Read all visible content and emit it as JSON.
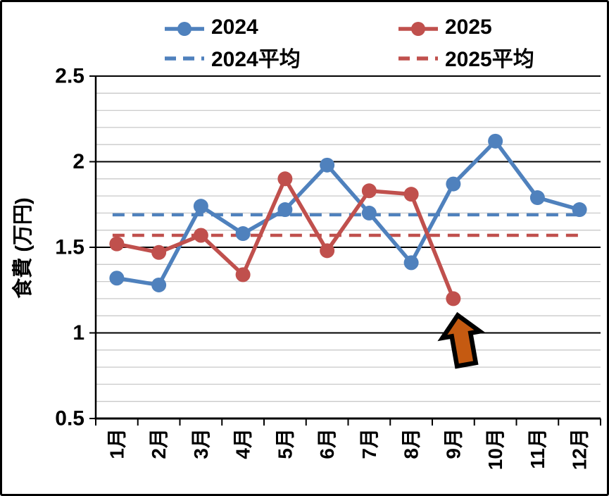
{
  "chart_data": {
    "type": "line",
    "title": "",
    "ylabel": "食費 (万円)",
    "xlabel": "",
    "categories": [
      "1月",
      "2月",
      "3月",
      "4月",
      "5月",
      "6月",
      "7月",
      "8月",
      "9月",
      "10月",
      "11月",
      "12月"
    ],
    "series": [
      {
        "name": "2024",
        "style": "solid",
        "marker": "circle",
        "color": "#4F81BD",
        "values": [
          1.32,
          1.28,
          1.74,
          1.58,
          1.72,
          1.98,
          1.7,
          1.41,
          1.87,
          2.12,
          1.79,
          1.72
        ]
      },
      {
        "name": "2025",
        "style": "solid",
        "marker": "circle",
        "color": "#C0504D",
        "values": [
          1.52,
          1.47,
          1.57,
          1.34,
          1.9,
          1.48,
          1.83,
          1.81,
          1.2
        ]
      },
      {
        "name": "2024平均",
        "style": "dashed",
        "marker": "none",
        "color": "#4F81BD",
        "constant": 1.69
      },
      {
        "name": "2025平均",
        "style": "dashed",
        "marker": "none",
        "color": "#C0504D",
        "constant": 1.57
      }
    ],
    "ylim": [
      0.5,
      2.5
    ],
    "ytick_interval": 0.5,
    "minor_gridline_interval": 0.1,
    "grid": "major-black-minor-gray",
    "legend_position": "top",
    "annotation": {
      "shape": "up-arrow",
      "series": "2025",
      "category": "9月",
      "value": 1.2,
      "fill": "#C55A11",
      "outline": "#000000",
      "tilt_deg": -10
    }
  },
  "y_axis": {
    "title": "食費 (万円)",
    "tick_labels": [
      "2.5",
      "2",
      "1.5",
      "1",
      "0.5"
    ]
  },
  "x_axis": {
    "labels": [
      "1月",
      "2月",
      "3月",
      "4月",
      "5月",
      "6月",
      "7月",
      "8月",
      "9月",
      "10月",
      "11月",
      "12月"
    ],
    "label_rotation_deg": -90
  },
  "colors": {
    "series_2024": "#4F81BD",
    "series_2025": "#C0504D",
    "minor_gridline": "#C9C9C9",
    "major_gridline": "#000000",
    "axis": "#000000",
    "text": "#000000",
    "background": "#FFFFFF",
    "frame_border": "#000000",
    "arrow_fill": "#C55A11",
    "arrow_outline": "#000000"
  }
}
